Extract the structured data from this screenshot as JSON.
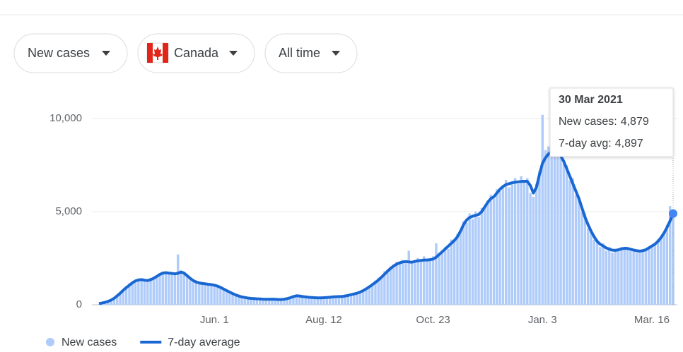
{
  "controls": {
    "metric": "New cases",
    "region": "Canada",
    "range": "All time"
  },
  "chart_data": {
    "type": "bar",
    "categories": [
      null,
      null,
      null,
      null,
      null,
      null,
      null,
      null,
      null,
      null,
      null,
      null,
      null,
      null,
      null,
      null,
      null,
      null,
      null,
      null,
      null,
      null,
      null,
      null,
      null,
      null,
      null,
      null,
      null,
      null,
      null,
      null,
      null,
      null,
      null,
      null,
      null,
      null,
      "Jun. 1",
      null,
      null,
      null,
      null,
      null,
      null,
      null,
      null,
      null,
      null,
      null,
      null,
      null,
      null,
      null,
      null,
      null,
      null,
      null,
      null,
      null,
      null,
      null,
      null,
      null,
      null,
      null,
      null,
      null,
      null,
      null,
      null,
      null,
      null,
      null,
      "Aug. 12",
      null,
      null,
      null,
      null,
      null,
      null,
      null,
      null,
      null,
      null,
      null,
      null,
      null,
      null,
      null,
      null,
      null,
      null,
      null,
      null,
      null,
      null,
      null,
      null,
      null,
      null,
      null,
      null,
      null,
      null,
      null,
      null,
      null,
      null,
      null,
      "Oct. 23",
      null,
      null,
      null,
      null,
      null,
      null,
      null,
      null,
      null,
      null,
      null,
      null,
      null,
      null,
      null,
      null,
      null,
      null,
      null,
      null,
      null,
      null,
      null,
      null,
      null,
      null,
      null,
      null,
      null,
      null,
      null,
      null,
      null,
      null,
      null,
      "Jan. 3",
      null,
      null,
      null,
      null,
      null,
      null,
      null,
      null,
      null,
      null,
      null,
      null,
      null,
      null,
      null,
      null,
      null,
      null,
      null,
      null,
      null,
      null,
      null,
      null,
      null,
      null,
      null,
      null,
      null,
      null,
      null,
      null,
      null,
      null,
      null,
      "Mar. 16",
      null,
      null,
      null,
      null,
      null,
      null,
      null
    ],
    "series": [
      {
        "name": "New cases",
        "type": "bar",
        "color": "#aecbfa",
        "values": [
          40,
          110,
          150,
          160,
          300,
          410,
          420,
          700,
          850,
          1000,
          1150,
          1250,
          1200,
          1400,
          1300,
          1380,
          1250,
          1450,
          1500,
          1600,
          1700,
          1650,
          1800,
          1750,
          1600,
          1720,
          2700,
          1800,
          1650,
          1500,
          1350,
          1250,
          1200,
          1100,
          1180,
          1050,
          1150,
          1000,
          1100,
          950,
          900,
          800,
          700,
          650,
          560,
          500,
          450,
          400,
          370,
          340,
          360,
          310,
          340,
          290,
          320,
          270,
          300,
          350,
          270,
          260,
          300,
          320,
          350,
          420,
          480,
          450,
          500,
          430,
          380,
          420,
          370,
          400,
          350,
          390,
          360,
          410,
          380,
          450,
          400,
          470,
          420,
          500,
          480,
          580,
          550,
          650,
          720,
          820,
          900,
          1050,
          1150,
          1300,
          1450,
          1500,
          1800,
          1900,
          2050,
          2150,
          2300,
          2200,
          2400,
          2250,
          2900,
          2200,
          2350,
          2500,
          2300,
          2600,
          2350,
          2500,
          2600,
          3300,
          2800,
          2900,
          3100,
          3000,
          3500,
          3400,
          3800,
          4000,
          4500,
          4400,
          4900,
          4600,
          5000,
          4700,
          5200,
          5300,
          5600,
          5900,
          5700,
          6200,
          6100,
          6400,
          6700,
          6300,
          6600,
          6800,
          6500,
          6900,
          6700,
          6800,
          6000,
          5800,
          6500,
          7200,
          10200,
          8300,
          8500,
          8100,
          8600,
          8000,
          8300,
          7600,
          7500,
          6700,
          6800,
          5900,
          5800,
          5000,
          4900,
          4100,
          4000,
          3500,
          3500,
          3100,
          3300,
          2900,
          3100,
          2800,
          3000,
          2900,
          3100,
          2950,
          3100,
          2900,
          3000,
          2800,
          2950,
          2850,
          3000,
          3100,
          3200,
          3300,
          3500,
          3700,
          3900,
          4300,
          5300,
          4879
        ]
      },
      {
        "name": "7-day average",
        "type": "line",
        "color": "#1967d2",
        "values": [
          60,
          90,
          130,
          180,
          250,
          350,
          480,
          620,
          780,
          920,
          1050,
          1180,
          1280,
          1330,
          1350,
          1320,
          1300,
          1340,
          1420,
          1520,
          1620,
          1700,
          1720,
          1700,
          1680,
          1660,
          1690,
          1760,
          1700,
          1560,
          1420,
          1300,
          1220,
          1170,
          1140,
          1120,
          1100,
          1080,
          1050,
          1000,
          930,
          850,
          760,
          680,
          600,
          530,
          470,
          420,
          390,
          360,
          340,
          330,
          320,
          310,
          300,
          290,
          290,
          300,
          290,
          280,
          280,
          300,
          330,
          380,
          440,
          480,
          470,
          440,
          420,
          400,
          390,
          380,
          370,
          370,
          380,
          390,
          400,
          420,
          430,
          440,
          440,
          470,
          500,
          540,
          580,
          620,
          680,
          760,
          860,
          960,
          1080,
          1200,
          1330,
          1480,
          1640,
          1800,
          1950,
          2080,
          2180,
          2250,
          2300,
          2320,
          2300,
          2280,
          2330,
          2360,
          2380,
          2400,
          2400,
          2420,
          2450,
          2550,
          2700,
          2850,
          3000,
          3150,
          3300,
          3450,
          3650,
          3950,
          4300,
          4550,
          4680,
          4750,
          4800,
          4850,
          5000,
          5250,
          5500,
          5700,
          5800,
          6000,
          6200,
          6350,
          6450,
          6500,
          6550,
          6580,
          6600,
          6620,
          6630,
          6630,
          6400,
          6000,
          6300,
          7000,
          7600,
          7900,
          8100,
          8200,
          8200,
          8100,
          8000,
          7700,
          7300,
          6900,
          6500,
          6100,
          5700,
          5200,
          4700,
          4300,
          3950,
          3650,
          3400,
          3250,
          3150,
          3050,
          2980,
          2930,
          2920,
          2950,
          3000,
          3030,
          3020,
          2980,
          2940,
          2900,
          2880,
          2900,
          2950,
          3050,
          3150,
          3250,
          3400,
          3600,
          3850,
          4150,
          4500,
          4897
        ]
      }
    ],
    "ylim": [
      0,
      11000
    ],
    "yticks": [
      0,
      {
        "value": 5000,
        "label": "5,000"
      },
      {
        "value": 10000,
        "label": "10,000"
      }
    ],
    "grid": true,
    "legend": "bottom",
    "tooltip": {
      "title": "30 Mar 2021",
      "rows": [
        {
          "label": "New cases:",
          "value": "4,879"
        },
        {
          "label": "7-day avg:",
          "value": "4,897"
        }
      ]
    }
  }
}
